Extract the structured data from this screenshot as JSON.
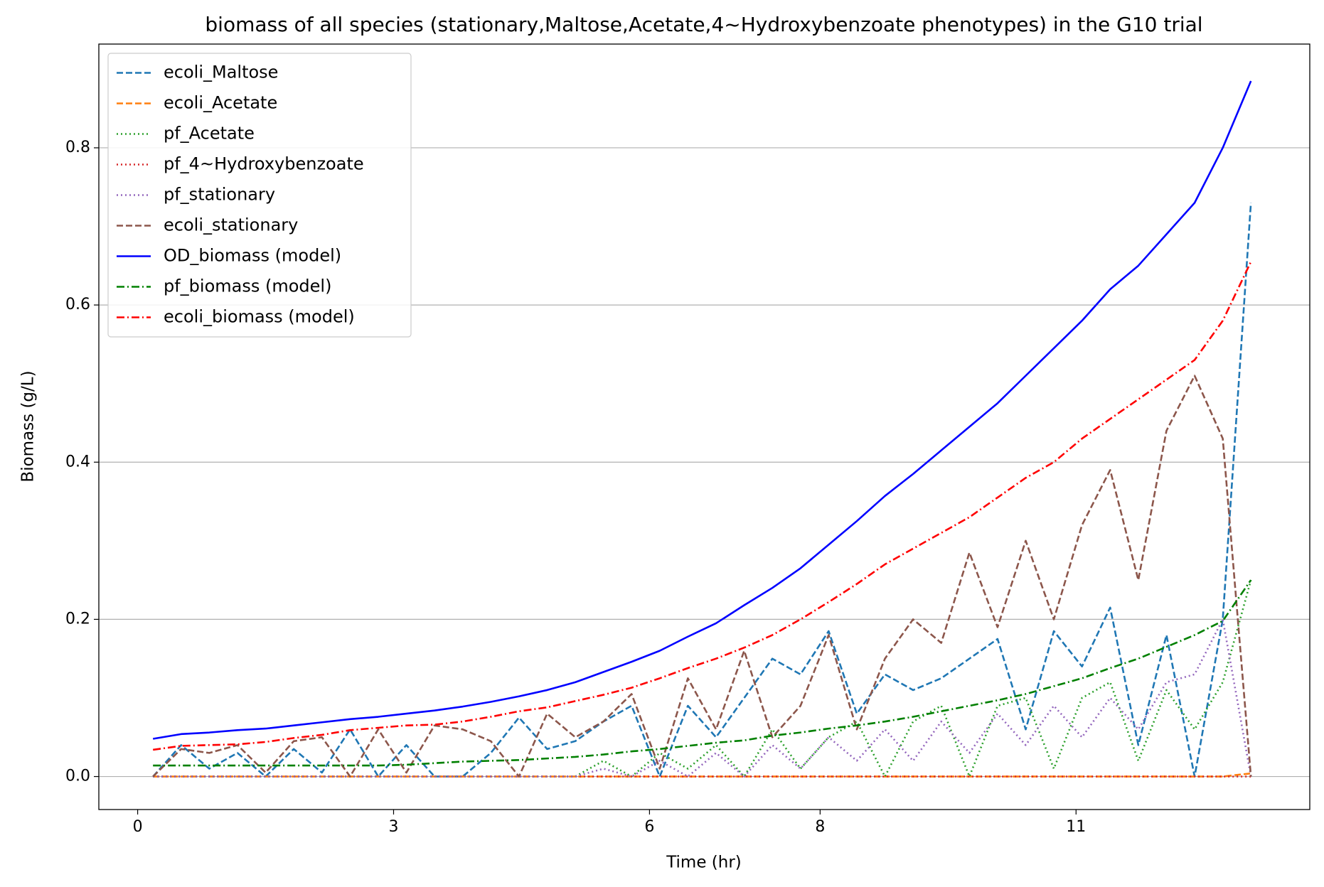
{
  "chart_data": {
    "type": "line",
    "title": "biomass of all species (stationary,Maltose,Acetate,4~Hydroxybenzoate phenotypes) in the G10 trial",
    "x_label": "Time (hr)",
    "y_label": "Biomass (g/L)",
    "x": [
      0.18,
      0.51,
      0.84,
      1.17,
      1.5,
      1.83,
      2.16,
      2.49,
      2.82,
      3.15,
      3.48,
      3.81,
      4.14,
      4.47,
      4.8,
      5.13,
      5.46,
      5.79,
      6.12,
      6.45,
      6.78,
      7.11,
      7.44,
      7.77,
      8.1,
      8.43,
      8.76,
      9.09,
      9.42,
      9.75,
      10.08,
      10.41,
      10.74,
      11.07,
      11.4,
      11.73,
      12.06,
      12.39,
      12.72,
      13.05
    ],
    "series": [
      {
        "name": "ecoli_Maltose",
        "color": "#1f77b4",
        "dash": "dashed",
        "values": [
          0,
          0.04,
          0.01,
          0.03,
          0,
          0.035,
          0.005,
          0.06,
          0,
          0.04,
          0,
          0,
          0.03,
          0.075,
          0.035,
          0.045,
          0.07,
          0.09,
          0,
          0.09,
          0.05,
          0.1,
          0.15,
          0.13,
          0.185,
          0.08,
          0.13,
          0.11,
          0.125,
          0.15,
          0.175,
          0.06,
          0.185,
          0.14,
          0.215,
          0.04,
          0.18,
          0,
          0.2,
          0.73
        ]
      },
      {
        "name": "ecoli_Acetate",
        "color": "#ff7f0e",
        "dash": "dashed",
        "values": [
          0,
          0,
          0,
          0,
          0,
          0,
          0,
          0,
          0,
          0,
          0,
          0,
          0,
          0,
          0,
          0,
          0,
          0,
          0,
          0,
          0,
          0,
          0,
          0,
          0,
          0,
          0,
          0,
          0,
          0,
          0,
          0,
          0,
          0,
          0,
          0,
          0,
          0,
          0,
          0.004
        ]
      },
      {
        "name": "pf_Acetate",
        "color": "#2ca02c",
        "dash": "dotted",
        "values": [
          0,
          0,
          0,
          0,
          0,
          0,
          0,
          0,
          0,
          0,
          0,
          0,
          0,
          0,
          0,
          0,
          0.02,
          0,
          0.03,
          0.01,
          0.04,
          0,
          0.06,
          0.01,
          0.05,
          0.07,
          0,
          0.07,
          0.09,
          0,
          0.09,
          0.1,
          0.01,
          0.1,
          0.12,
          0.02,
          0.11,
          0.06,
          0.12,
          0.25
        ]
      },
      {
        "name": "pf_4~Hydroxybenzoate",
        "color": "#d62728",
        "dash": "dotted",
        "values": [
          0,
          0,
          0,
          0,
          0,
          0,
          0,
          0,
          0,
          0,
          0,
          0,
          0,
          0,
          0,
          0,
          0,
          0,
          0,
          0,
          0,
          0,
          0,
          0,
          0,
          0,
          0,
          0,
          0,
          0,
          0,
          0,
          0,
          0,
          0,
          0,
          0,
          0,
          0,
          0
        ]
      },
      {
        "name": "pf_stationary",
        "color": "#9467bd",
        "dash": "dotted",
        "values": [
          0,
          0,
          0,
          0,
          0,
          0,
          0,
          0,
          0,
          0,
          0,
          0,
          0,
          0,
          0,
          0,
          0.01,
          0,
          0.02,
          0,
          0.03,
          0,
          0.04,
          0.01,
          0.05,
          0.02,
          0.06,
          0.02,
          0.07,
          0.03,
          0.08,
          0.04,
          0.09,
          0.05,
          0.1,
          0.06,
          0.12,
          0.13,
          0.2,
          0
        ]
      },
      {
        "name": "ecoli_stationary",
        "color": "#8c564b",
        "dash": "dashed",
        "values": [
          0,
          0.035,
          0.03,
          0.04,
          0.005,
          0.045,
          0.05,
          0,
          0.06,
          0.005,
          0.065,
          0.06,
          0.045,
          0,
          0.08,
          0.05,
          0.07,
          0.105,
          0.01,
          0.125,
          0.06,
          0.16,
          0.05,
          0.09,
          0.18,
          0.06,
          0.15,
          0.2,
          0.17,
          0.285,
          0.19,
          0.3,
          0.2,
          0.32,
          0.39,
          0.25,
          0.44,
          0.51,
          0.43,
          0
        ]
      },
      {
        "name": "OD_biomass (model)",
        "color": "#0000ff",
        "dash": "solid",
        "values": [
          0.048,
          0.054,
          0.056,
          0.059,
          0.061,
          0.065,
          0.069,
          0.073,
          0.076,
          0.08,
          0.084,
          0.089,
          0.095,
          0.102,
          0.11,
          0.12,
          0.133,
          0.146,
          0.16,
          0.178,
          0.195,
          0.218,
          0.24,
          0.265,
          0.295,
          0.325,
          0.357,
          0.385,
          0.415,
          0.445,
          0.475,
          0.51,
          0.545,
          0.58,
          0.62,
          0.65,
          0.69,
          0.73,
          0.8,
          0.885
        ]
      },
      {
        "name": "pf_biomass (model)",
        "color": "#008000",
        "dash": "dashdot",
        "values": [
          0.014,
          0.014,
          0.014,
          0.014,
          0.014,
          0.014,
          0.014,
          0.014,
          0.014,
          0.015,
          0.017,
          0.019,
          0.02,
          0.021,
          0.023,
          0.025,
          0.028,
          0.032,
          0.035,
          0.039,
          0.043,
          0.046,
          0.052,
          0.056,
          0.061,
          0.065,
          0.07,
          0.076,
          0.083,
          0.09,
          0.097,
          0.105,
          0.115,
          0.125,
          0.138,
          0.15,
          0.165,
          0.18,
          0.198,
          0.25
        ]
      },
      {
        "name": "ecoli_biomass (model)",
        "color": "#ff0000",
        "dash": "dashdot",
        "values": [
          0.034,
          0.039,
          0.04,
          0.041,
          0.044,
          0.049,
          0.053,
          0.059,
          0.062,
          0.065,
          0.066,
          0.07,
          0.076,
          0.083,
          0.088,
          0.096,
          0.104,
          0.113,
          0.125,
          0.138,
          0.15,
          0.164,
          0.18,
          0.2,
          0.222,
          0.245,
          0.27,
          0.29,
          0.31,
          0.33,
          0.355,
          0.38,
          0.4,
          0.43,
          0.455,
          0.48,
          0.505,
          0.53,
          0.58,
          0.655
        ]
      }
    ],
    "xlim": [
      -0.455,
      13.74
    ],
    "xticks": [
      0,
      3,
      6,
      8,
      11
    ],
    "ylim": [
      -0.042,
      0.932
    ],
    "yticks": [
      {
        "value": 0,
        "label": "0.0"
      },
      0.2,
      0.4,
      0.6,
      0.8
    ],
    "grid": "y",
    "legend": "upper left"
  }
}
